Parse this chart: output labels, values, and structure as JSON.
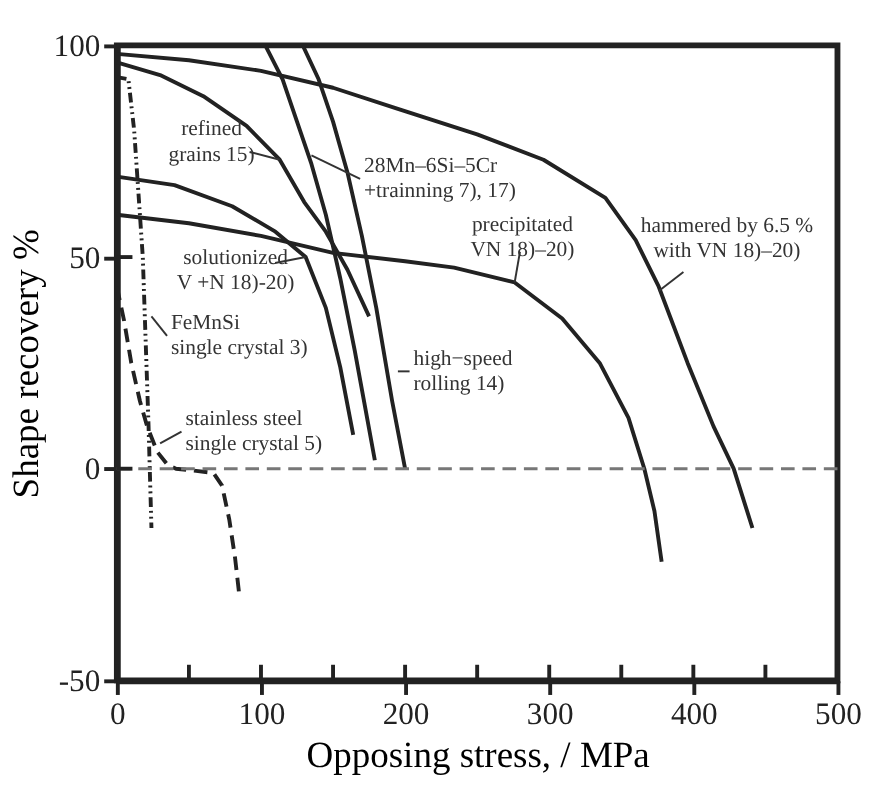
{
  "chart_data": {
    "type": "line",
    "xlabel": "Opposing stress, /  MPa",
    "ylabel": "Shape recovery  %",
    "xlim": [
      0,
      500
    ],
    "ylim": [
      -50,
      100
    ],
    "xticks": [
      0,
      {
        "value": 50,
        "label": null
      },
      100,
      {
        "value": 150,
        "label": null
      },
      200,
      {
        "value": 250,
        "label": null
      },
      300,
      {
        "value": 350,
        "label": null
      },
      400,
      {
        "value": 450,
        "label": null
      },
      500
    ],
    "yticks": [
      -50,
      0,
      50,
      100
    ],
    "grid": false,
    "marker": "none",
    "series": [
      {
        "color": "#222222",
        "line_style": "solid",
        "x": [
          0,
          50,
          100,
          150,
          195,
          250,
          296,
          339,
          360,
          376,
          396,
          414,
          428,
          441
        ],
        "values": [
          98,
          96.5,
          94,
          90,
          85,
          79,
          73,
          64,
          54,
          43,
          25,
          10,
          0,
          -14
        ]
      },
      {
        "color": "#222222",
        "line_style": "solid",
        "x": [
          0,
          50,
          100,
          150,
          200,
          234,
          276,
          309,
          335,
          355,
          366,
          373,
          378
        ],
        "values": [
          60,
          58,
          55,
          51,
          49,
          47.5,
          44,
          35.5,
          25,
          12,
          0,
          -10,
          -22
        ]
      },
      {
        "color": "#222222",
        "line_style": "solid",
        "x": [
          103,
          115,
          125,
          135,
          145,
          155,
          165,
          172,
          179
        ],
        "values": [
          100,
          92,
          82,
          72,
          60,
          45,
          28,
          15,
          2
        ]
      },
      {
        "color": "#222222",
        "line_style": "solid",
        "x": [
          129,
          140,
          150,
          160,
          170,
          180,
          191,
          200
        ],
        "values": [
          100,
          92,
          82,
          70,
          55,
          38,
          16,
          0
        ]
      },
      {
        "color": "#222222",
        "line_style": "solid",
        "x": [
          0,
          30,
          60,
          90,
          113,
          130,
          145,
          160,
          175
        ],
        "values": [
          96,
          93,
          88,
          81,
          73,
          63,
          56,
          47,
          36
        ]
      },
      {
        "color": "#222222",
        "line_style": "solid",
        "x": [
          0,
          40,
          80,
          110,
          131,
          145,
          155,
          164
        ],
        "values": [
          69,
          67,
          62,
          56,
          50,
          38,
          24,
          8
        ]
      },
      {
        "color": "#222222",
        "line_style": "dotted",
        "x": [
          0,
          8,
          12,
          15,
          18,
          20,
          22,
          24
        ],
        "values": [
          92.5,
          92,
          80,
          65,
          50,
          30,
          10,
          -14
        ]
      },
      {
        "color": "#222222",
        "line_style": "dashed",
        "x": [
          0,
          5,
          10,
          16,
          21,
          28,
          35,
          41,
          55,
          67,
          73,
          78,
          82,
          85
        ],
        "values": [
          43,
          35,
          25,
          16,
          10,
          4,
          1,
          0,
          -0.5,
          -1,
          -4,
          -12,
          -21,
          -30
        ]
      }
    ],
    "ref_lines": [
      {
        "axis": "y",
        "value": 0,
        "color": "#777777",
        "line_style": "dashed"
      }
    ],
    "annotations": [
      {
        "text": "refined\ngrains 15)",
        "x": 113,
        "y": 73
      },
      {
        "text": "28Mn–6Si–5Cr\n+trainning 7), 17)",
        "x": 135,
        "y": 74
      },
      {
        "text": "solutionized\nV +N  18)-20)",
        "x": 131,
        "y": 50
      },
      {
        "text": "FeMnSi\nsingle crystal 3)",
        "x": 24,
        "y": 36
      },
      {
        "text": "stainless steel\nsingle crystal 5)",
        "x": 30,
        "y": 6
      },
      {
        "text": "high−speed\nrolling 14)",
        "x": 195,
        "y": 23
      },
      {
        "text": "precipitated\nVN 18)–20)",
        "x": 276,
        "y": 44
      },
      {
        "text": "hammered by 6.5 %\nwith VN 18)–20)",
        "x": 376,
        "y": 42
      }
    ]
  }
}
